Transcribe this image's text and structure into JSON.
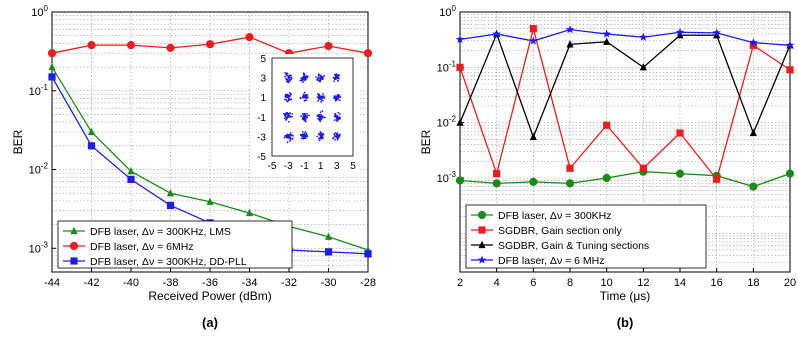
{
  "chart_data": [
    {
      "panel": "(a)",
      "type": "line",
      "xlabel": "Received Power (dBm)",
      "ylabel": "BER",
      "xlim": [
        -44,
        -28
      ],
      "ylim": [
        0.0005,
        1
      ],
      "yscale": "log",
      "xticks": [
        -44,
        -42,
        -40,
        -38,
        -36,
        -34,
        -32,
        -30,
        -28
      ],
      "yticks": [
        {
          "v": 0.001,
          "base": "10",
          "exp": "-3"
        },
        {
          "v": 0.01,
          "base": "10",
          "exp": "-2"
        },
        {
          "v": 0.1,
          "base": "10",
          "exp": "-1"
        },
        {
          "v": 1,
          "base": "10",
          "exp": "0"
        }
      ],
      "grid": true,
      "legend_position": "bottom-left",
      "series": [
        {
          "name": "DFB laser, Δν = 300KHz, LMS",
          "color": "#1a8a1a",
          "marker": "triangle",
          "x": [
            -44,
            -42,
            -40,
            -38,
            -36,
            -34,
            -32,
            -30,
            -28
          ],
          "y": [
            0.2,
            0.03,
            0.0095,
            0.005,
            0.0039,
            0.0028,
            0.0019,
            0.0014,
            0.00095
          ]
        },
        {
          "name": "DFB laser, Δν = 6MHz",
          "color": "#ee1c1c",
          "marker": "circle",
          "x": [
            -44,
            -42,
            -40,
            -38,
            -36,
            -34,
            -32,
            -30,
            -28
          ],
          "y": [
            0.3,
            0.38,
            0.38,
            0.35,
            0.39,
            0.48,
            0.3,
            0.37,
            0.3
          ]
        },
        {
          "name": "DFB laser, Δν = 300KHz, DD-PLL",
          "color": "#1c1cee",
          "marker": "square",
          "x": [
            -44,
            -42,
            -40,
            -38,
            -36,
            -34,
            -32,
            -30,
            -28
          ],
          "y": [
            0.15,
            0.02,
            0.0075,
            0.0035,
            0.0021,
            0.0014,
            0.00095,
            0.0009,
            0.00085
          ]
        }
      ],
      "inset": {
        "type": "scatter",
        "title": "",
        "xlim": [
          -5,
          5
        ],
        "ylim": [
          -5,
          5
        ],
        "xticks": [
          -5,
          -3,
          -1,
          1,
          3,
          5
        ],
        "yticks": [
          5,
          3,
          1,
          -1,
          -3,
          -5
        ],
        "clusters_x": [
          -3,
          -1,
          1,
          3
        ],
        "clusters_y": [
          -3,
          -1,
          1,
          3
        ],
        "color": "#1c1cee"
      },
      "caption": "(a)"
    },
    {
      "panel": "(b)",
      "type": "line",
      "xlabel": "Time (μs)",
      "ylabel": "BER",
      "xlim": [
        2,
        20
      ],
      "ylim": [
        2e-05,
        1
      ],
      "yscale": "log",
      "xticks": [
        2,
        4,
        6,
        8,
        10,
        12,
        14,
        16,
        18,
        20
      ],
      "yticks": [
        {
          "v": 0.001,
          "base": "10",
          "exp": "-3"
        },
        {
          "v": 0.01,
          "base": "10",
          "exp": "-2"
        },
        {
          "v": 0.1,
          "base": "10",
          "exp": "-1"
        },
        {
          "v": 1,
          "base": "10",
          "exp": "0"
        }
      ],
      "grid": true,
      "legend_position": "bottom-left",
      "series": [
        {
          "name": "DFB laser, Δν = 300KHz",
          "color": "#1a8a1a",
          "marker": "circle",
          "x": [
            2,
            4,
            6,
            8,
            10,
            12,
            14,
            16,
            18,
            20
          ],
          "y": [
            0.0009,
            0.0008,
            0.00085,
            0.0008,
            0.001,
            0.0013,
            0.0012,
            0.0011,
            0.0007,
            0.0012
          ]
        },
        {
          "name": "SGDBR, Gain section only",
          "color": "#ee1c1c",
          "marker": "square",
          "x": [
            2,
            4,
            6,
            8,
            10,
            12,
            14,
            16,
            18,
            20
          ],
          "y": [
            0.1,
            0.0012,
            0.5,
            0.0015,
            0.009,
            0.0015,
            0.0065,
            0.00095,
            0.25,
            0.09
          ]
        },
        {
          "name": "SGDBR, Gain & Tuning sections",
          "color": "#000000",
          "marker": "triangle",
          "x": [
            2,
            4,
            6,
            8,
            10,
            12,
            14,
            16,
            18,
            20
          ],
          "y": [
            0.01,
            0.4,
            0.0055,
            0.26,
            0.29,
            0.1,
            0.38,
            0.38,
            0.0065,
            0.25
          ]
        },
        {
          "name": "DFB laser, Δν = 6 MHz",
          "color": "#1c1cee",
          "marker": "star",
          "x": [
            2,
            4,
            6,
            8,
            10,
            12,
            14,
            16,
            18,
            20
          ],
          "y": [
            0.32,
            0.4,
            0.3,
            0.48,
            0.4,
            0.35,
            0.43,
            0.42,
            0.28,
            0.25
          ]
        }
      ],
      "caption": "(b)"
    }
  ]
}
